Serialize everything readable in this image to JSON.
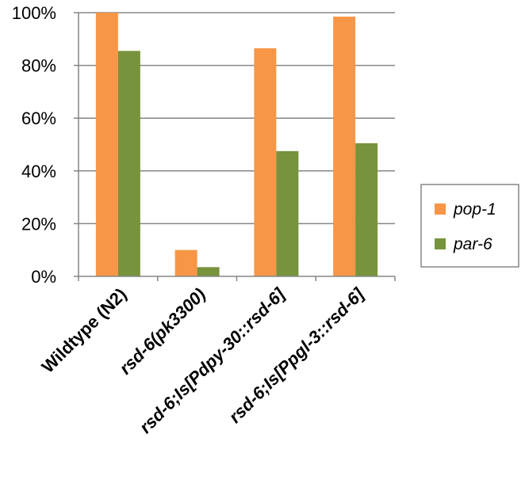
{
  "chart_data": {
    "type": "bar",
    "title": "",
    "xlabel": "",
    "ylabel": "",
    "categories": [
      {
        "plain": "Wildtype (N2)",
        "italic": ""
      },
      {
        "plain": "",
        "italic": "rsd-6(pk3300)"
      },
      {
        "plain": "",
        "italic": "rsd-6;Is[Pdpy-30::rsd-6]"
      },
      {
        "plain": "",
        "italic": "rsd-6;Is[Ppgl-3::rsd-6]"
      }
    ],
    "series": [
      {
        "name": "pop-1",
        "color": "#F79646",
        "values": [
          100,
          10,
          86.5,
          98.5
        ]
      },
      {
        "name": "par-6",
        "color": "#77933C",
        "values": [
          85.5,
          3.5,
          47.5,
          50.5
        ]
      }
    ],
    "y_ticks": [
      0,
      20,
      40,
      60,
      80,
      100
    ],
    "y_tick_labels": [
      "0%",
      "20%",
      "40%",
      "60%",
      "80%",
      "100%"
    ],
    "ylim": [
      0,
      100
    ],
    "grid": true,
    "legend": "right"
  }
}
